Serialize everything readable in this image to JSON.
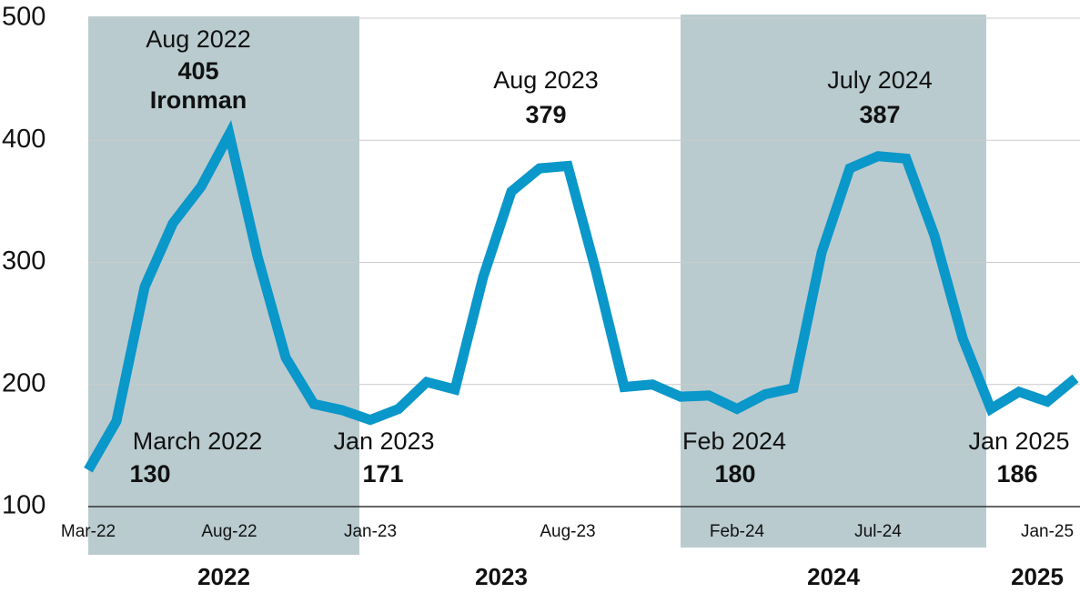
{
  "chart_data": {
    "type": "line",
    "color": "#0a97c9",
    "categories": [
      "Mar-22",
      null,
      null,
      null,
      null,
      "Aug-22",
      null,
      null,
      null,
      null,
      "Jan-23",
      null,
      null,
      null,
      null,
      null,
      null,
      "Aug-23",
      null,
      null,
      null,
      null,
      null,
      "Feb-24",
      null,
      null,
      null,
      null,
      "Jul-24",
      null,
      null,
      null,
      null,
      null,
      "Jan-25",
      null
    ],
    "values": [
      130,
      170,
      280,
      332,
      362,
      405,
      305,
      222,
      184,
      179,
      171,
      180,
      202,
      196,
      288,
      358,
      377,
      379,
      293,
      198,
      200,
      190,
      191,
      180,
      192,
      197,
      308,
      377,
      387,
      385,
      322,
      238,
      180,
      194,
      186,
      205
    ],
    "ylim": [
      100,
      500
    ],
    "yticks": [
      100,
      200,
      300,
      400,
      500
    ],
    "grid": true,
    "annotations": [
      {
        "date": "Aug 2022",
        "value": 405,
        "note": "Ironman"
      },
      {
        "date": "Aug 2023",
        "value": 379
      },
      {
        "date": "July 2024",
        "value": 387
      },
      {
        "date": "March 2022",
        "value": 130
      },
      {
        "date": "Jan 2023",
        "value": 171
      },
      {
        "date": "Feb 2024",
        "value": 180
      },
      {
        "date": "Jan 2025",
        "value": 186
      }
    ],
    "year_labels": [
      "2022",
      "2023",
      "2024",
      "2025"
    ]
  }
}
